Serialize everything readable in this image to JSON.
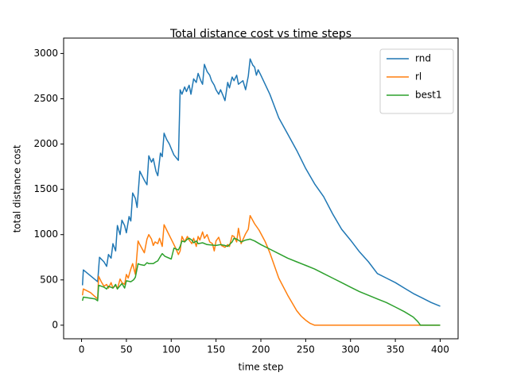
{
  "chart_data": {
    "type": "line",
    "title": "Total distance cost vs time steps",
    "x_label": "time step",
    "y_label": "total distance cost",
    "xlim": [
      -20,
      420
    ],
    "ylim": [
      -150,
      3170
    ],
    "xticks": [
      0,
      50,
      100,
      150,
      200,
      250,
      300,
      350,
      400
    ],
    "yticks": [
      0,
      500,
      1000,
      1500,
      2000,
      2500,
      3000
    ],
    "legend": "upper right",
    "series": [
      {
        "name": "rnd",
        "color": "#1f77b4",
        "x": [
          1,
          2,
          18,
          20,
          25,
          28,
          30,
          33,
          35,
          38,
          40,
          43,
          45,
          48,
          50,
          53,
          55,
          57,
          60,
          62,
          65,
          70,
          73,
          75,
          78,
          80,
          83,
          85,
          88,
          90,
          92,
          95,
          98,
          100,
          103,
          108,
          110,
          112,
          115,
          117,
          120,
          122,
          125,
          128,
          130,
          133,
          135,
          137,
          140,
          143,
          145,
          148,
          150,
          153,
          155,
          158,
          160,
          163,
          165,
          168,
          170,
          173,
          175,
          180,
          183,
          186,
          188,
          191,
          193,
          195,
          197,
          200,
          210,
          220,
          230,
          240,
          250,
          260,
          270,
          280,
          290,
          300,
          310,
          320,
          330,
          340,
          350,
          360,
          370,
          380,
          390,
          400
        ],
        "values": [
          440,
          610,
          480,
          750,
          700,
          650,
          780,
          740,
          900,
          820,
          1100,
          1000,
          1160,
          1100,
          1020,
          1200,
          1150,
          1460,
          1400,
          1300,
          1700,
          1600,
          1550,
          1870,
          1800,
          1840,
          1700,
          1650,
          1900,
          1860,
          2120,
          2050,
          2000,
          1950,
          1880,
          1820,
          2600,
          2550,
          2630,
          2580,
          2650,
          2550,
          2720,
          2680,
          2780,
          2700,
          2660,
          2880,
          2800,
          2760,
          2700,
          2650,
          2600,
          2550,
          2600,
          2530,
          2480,
          2680,
          2620,
          2740,
          2700,
          2760,
          2660,
          2700,
          2600,
          2750,
          2940,
          2870,
          2850,
          2760,
          2820,
          2760,
          2550,
          2290,
          2110,
          1930,
          1730,
          1560,
          1420,
          1230,
          1060,
          940,
          810,
          700,
          570,
          520,
          470,
          410,
          350,
          300,
          250,
          210
        ]
      },
      {
        "name": "rl",
        "color": "#ff7f0e",
        "x": [
          1,
          2,
          10,
          18,
          19,
          22,
          25,
          28,
          30,
          33,
          35,
          38,
          40,
          43,
          45,
          48,
          50,
          52,
          55,
          57,
          60,
          63,
          65,
          70,
          73,
          75,
          78,
          80,
          82,
          85,
          87,
          90,
          92,
          95,
          100,
          103,
          105,
          108,
          110,
          112,
          115,
          118,
          120,
          123,
          125,
          128,
          130,
          132,
          135,
          137,
          140,
          143,
          146,
          148,
          150,
          153,
          156,
          160,
          163,
          165,
          168,
          170,
          173,
          175,
          178,
          183,
          186,
          188,
          193,
          198,
          205,
          210,
          220,
          230,
          240,
          245,
          250,
          255,
          260,
          400
        ],
        "values": [
          330,
          400,
          360,
          290,
          540,
          480,
          430,
          450,
          410,
          470,
          410,
          440,
          400,
          510,
          470,
          450,
          560,
          520,
          620,
          680,
          560,
          930,
          890,
          800,
          950,
          1000,
          950,
          880,
          920,
          900,
          960,
          870,
          1110,
          1050,
          950,
          890,
          850,
          780,
          820,
          980,
          920,
          980,
          940,
          900,
          960,
          870,
          980,
          940,
          1030,
          960,
          1000,
          920,
          900,
          820,
          930,
          970,
          880,
          860,
          890,
          870,
          990,
          980,
          920,
          1070,
          900,
          1010,
          1060,
          1210,
          1120,
          1050,
          920,
          800,
          520,
          330,
          160,
          100,
          55,
          20,
          0,
          0
        ]
      },
      {
        "name": "best1",
        "color": "#2ca02c",
        "x": [
          1,
          2,
          15,
          18,
          19,
          25,
          28,
          30,
          35,
          38,
          40,
          45,
          48,
          50,
          55,
          58,
          60,
          63,
          65,
          70,
          73,
          75,
          80,
          83,
          85,
          88,
          90,
          93,
          100,
          103,
          108,
          110,
          112,
          115,
          118,
          120,
          123,
          125,
          128,
          130,
          135,
          140,
          150,
          155,
          160,
          163,
          168,
          170,
          173,
          178,
          183,
          188,
          193,
          200,
          210,
          220,
          230,
          240,
          250,
          260,
          270,
          280,
          290,
          300,
          310,
          320,
          330,
          340,
          350,
          360,
          370,
          375,
          378,
          400
        ],
        "values": [
          270,
          310,
          290,
          270,
          440,
          420,
          400,
          430,
          410,
          450,
          400,
          460,
          410,
          490,
          480,
          500,
          530,
          680,
          670,
          660,
          690,
          680,
          680,
          700,
          710,
          760,
          790,
          760,
          730,
          850,
          830,
          870,
          930,
          920,
          950,
          960,
          940,
          910,
          930,
          900,
          910,
          890,
          880,
          890,
          880,
          870,
          920,
          960,
          950,
          920,
          940,
          950,
          930,
          890,
          840,
          790,
          740,
          700,
          660,
          620,
          570,
          520,
          470,
          420,
          370,
          330,
          290,
          250,
          200,
          150,
          90,
          40,
          0,
          0
        ]
      }
    ]
  }
}
